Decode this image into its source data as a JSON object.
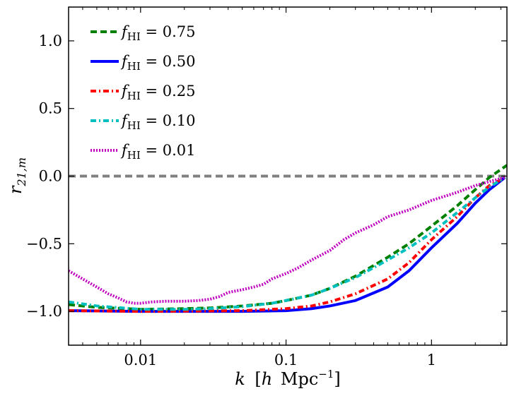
{
  "chart_data": {
    "type": "line",
    "title": "",
    "xlabel": "k [h Mpc^-1]",
    "xlabel_parts": {
      "k": "k",
      "bracket_open": "[",
      "h": "h",
      "unit": "Mpc",
      "exponent": "−1",
      "bracket_close": "]"
    },
    "ylabel": "r21,m",
    "ylabel_parts": {
      "base": "r",
      "sub": "21,m"
    },
    "xscale": "log",
    "xlim": [
      0.0032,
      3.3
    ],
    "ylim": [
      -1.25,
      1.25
    ],
    "xticks": [
      {
        "value": 0.01,
        "label": "0.01"
      },
      {
        "value": 0.1,
        "label": "0.1"
      },
      {
        "value": 1,
        "label": "1"
      }
    ],
    "yticks": [
      {
        "value": -1.0,
        "label": "−1.0"
      },
      {
        "value": -0.5,
        "label": "−0.5"
      },
      {
        "value": 0.0,
        "label": "0.0"
      },
      {
        "value": 0.5,
        "label": "0.5"
      },
      {
        "value": 1.0,
        "label": "1.0"
      }
    ],
    "grid": false,
    "legend_position": "top-left",
    "reference_line": {
      "y": 0.0,
      "color": "#808080",
      "style": "dashed"
    },
    "series": [
      {
        "name": "f_HI = 0.75",
        "label_f": "f",
        "label_sub": "HI",
        "label_value": " = 0.75",
        "color": "#008000",
        "style": "dashed",
        "points": [
          [
            0.0032,
            -0.95
          ],
          [
            0.005,
            -0.97
          ],
          [
            0.01,
            -0.985
          ],
          [
            0.02,
            -0.98
          ],
          [
            0.03,
            -0.975
          ],
          [
            0.05,
            -0.96
          ],
          [
            0.08,
            -0.94
          ],
          [
            0.1,
            -0.92
          ],
          [
            0.15,
            -0.88
          ],
          [
            0.2,
            -0.83
          ],
          [
            0.3,
            -0.74
          ],
          [
            0.5,
            -0.6
          ],
          [
            0.7,
            -0.5
          ],
          [
            1.0,
            -0.37
          ],
          [
            1.5,
            -0.22
          ],
          [
            2.0,
            -0.1
          ],
          [
            2.5,
            -0.01
          ],
          [
            3.3,
            0.08
          ]
        ]
      },
      {
        "name": "f_HI = 0.50",
        "label_f": "f",
        "label_sub": "HI",
        "label_value": " = 0.50",
        "color": "#0000ff",
        "style": "solid",
        "points": [
          [
            0.0032,
            -0.995
          ],
          [
            0.01,
            -1.0
          ],
          [
            0.05,
            -1.0
          ],
          [
            0.1,
            -0.995
          ],
          [
            0.15,
            -0.98
          ],
          [
            0.2,
            -0.96
          ],
          [
            0.3,
            -0.92
          ],
          [
            0.5,
            -0.82
          ],
          [
            0.7,
            -0.7
          ],
          [
            1.0,
            -0.53
          ],
          [
            1.5,
            -0.35
          ],
          [
            2.0,
            -0.2
          ],
          [
            2.5,
            -0.1
          ],
          [
            3.2,
            -0.01
          ]
        ]
      },
      {
        "name": "f_HI = 0.25",
        "label_f": "f",
        "label_sub": "HI",
        "label_value": " = 0.25",
        "color": "#ff0000",
        "style": "dashdot",
        "points": [
          [
            0.0032,
            -0.995
          ],
          [
            0.01,
            -1.0
          ],
          [
            0.05,
            -0.995
          ],
          [
            0.1,
            -0.98
          ],
          [
            0.15,
            -0.96
          ],
          [
            0.2,
            -0.93
          ],
          [
            0.3,
            -0.87
          ],
          [
            0.5,
            -0.76
          ],
          [
            0.7,
            -0.64
          ],
          [
            1.0,
            -0.47
          ],
          [
            1.5,
            -0.3
          ],
          [
            2.0,
            -0.16
          ],
          [
            2.5,
            -0.07
          ],
          [
            3.2,
            -0.01
          ]
        ]
      },
      {
        "name": "f_HI = 0.10",
        "label_f": "f",
        "label_sub": "HI",
        "label_value": " = 0.10",
        "color": "#00bfbf",
        "style": "dashdot",
        "points": [
          [
            0.0032,
            -0.93
          ],
          [
            0.005,
            -0.96
          ],
          [
            0.01,
            -0.985
          ],
          [
            0.02,
            -0.985
          ],
          [
            0.03,
            -0.98
          ],
          [
            0.05,
            -0.965
          ],
          [
            0.08,
            -0.94
          ],
          [
            0.1,
            -0.92
          ],
          [
            0.15,
            -0.88
          ],
          [
            0.2,
            -0.83
          ],
          [
            0.3,
            -0.75
          ],
          [
            0.5,
            -0.62
          ],
          [
            0.7,
            -0.53
          ],
          [
            1.0,
            -0.42
          ],
          [
            1.5,
            -0.27
          ],
          [
            2.0,
            -0.16
          ],
          [
            2.5,
            -0.08
          ],
          [
            3.2,
            -0.01
          ]
        ]
      },
      {
        "name": "f_HI = 0.01",
        "label_f": "f",
        "label_sub": "HI",
        "label_value": " = 0.01",
        "color": "#bf00bf",
        "style": "dotted",
        "points": [
          [
            0.0032,
            -0.7
          ],
          [
            0.004,
            -0.76
          ],
          [
            0.005,
            -0.82
          ],
          [
            0.006,
            -0.87
          ],
          [
            0.007,
            -0.9
          ],
          [
            0.008,
            -0.93
          ],
          [
            0.009,
            -0.94
          ],
          [
            0.01,
            -0.94
          ],
          [
            0.012,
            -0.93
          ],
          [
            0.015,
            -0.925
          ],
          [
            0.02,
            -0.925
          ],
          [
            0.025,
            -0.92
          ],
          [
            0.03,
            -0.91
          ],
          [
            0.035,
            -0.89
          ],
          [
            0.04,
            -0.86
          ],
          [
            0.05,
            -0.84
          ],
          [
            0.06,
            -0.82
          ],
          [
            0.07,
            -0.8
          ],
          [
            0.08,
            -0.76
          ],
          [
            0.1,
            -0.72
          ],
          [
            0.12,
            -0.68
          ],
          [
            0.15,
            -0.62
          ],
          [
            0.2,
            -0.55
          ],
          [
            0.25,
            -0.47
          ],
          [
            0.3,
            -0.42
          ],
          [
            0.4,
            -0.36
          ],
          [
            0.5,
            -0.3
          ],
          [
            0.7,
            -0.25
          ],
          [
            1.0,
            -0.18
          ],
          [
            1.5,
            -0.12
          ],
          [
            2.0,
            -0.07
          ],
          [
            2.5,
            -0.04
          ],
          [
            3.2,
            -0.01
          ]
        ]
      }
    ]
  }
}
